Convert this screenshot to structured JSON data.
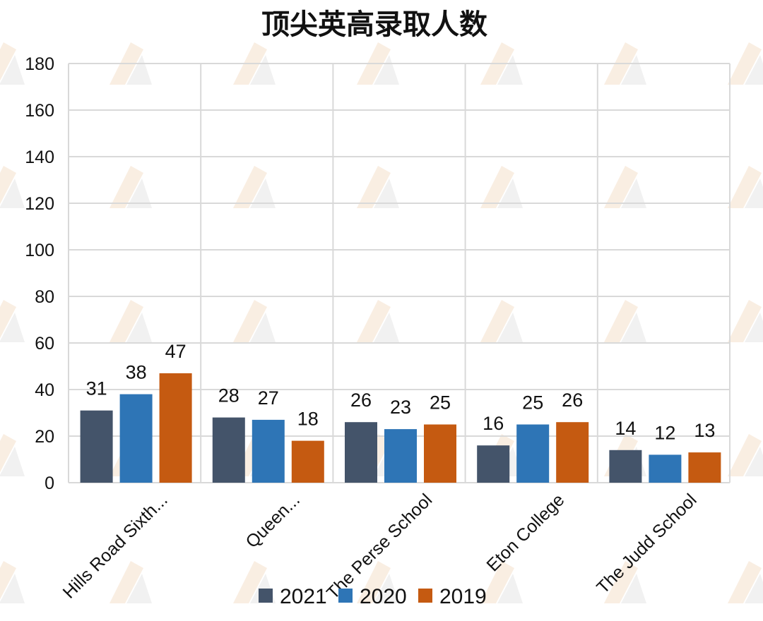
{
  "chart_data": {
    "type": "bar",
    "title": "顶尖英高录取人数",
    "categories": [
      "Hills Road Sixth...",
      "Queen...",
      "The Perse School",
      "Eton College",
      "The Judd School"
    ],
    "series": [
      {
        "name": "2021",
        "values": [
          31,
          28,
          26,
          16,
          14
        ],
        "color": "#44546a"
      },
      {
        "name": "2020",
        "values": [
          38,
          27,
          23,
          25,
          12
        ],
        "color": "#2e75b6"
      },
      {
        "name": "2019",
        "values": [
          47,
          18,
          25,
          26,
          13
        ],
        "color": "#c55a11"
      }
    ],
    "ylim": [
      0,
      180
    ],
    "yticks": [
      0,
      20,
      40,
      60,
      80,
      100,
      120,
      140,
      160,
      180
    ],
    "xlabel": "",
    "ylabel": "",
    "grid": true,
    "legend_position": "bottom",
    "show_data_labels": true
  }
}
